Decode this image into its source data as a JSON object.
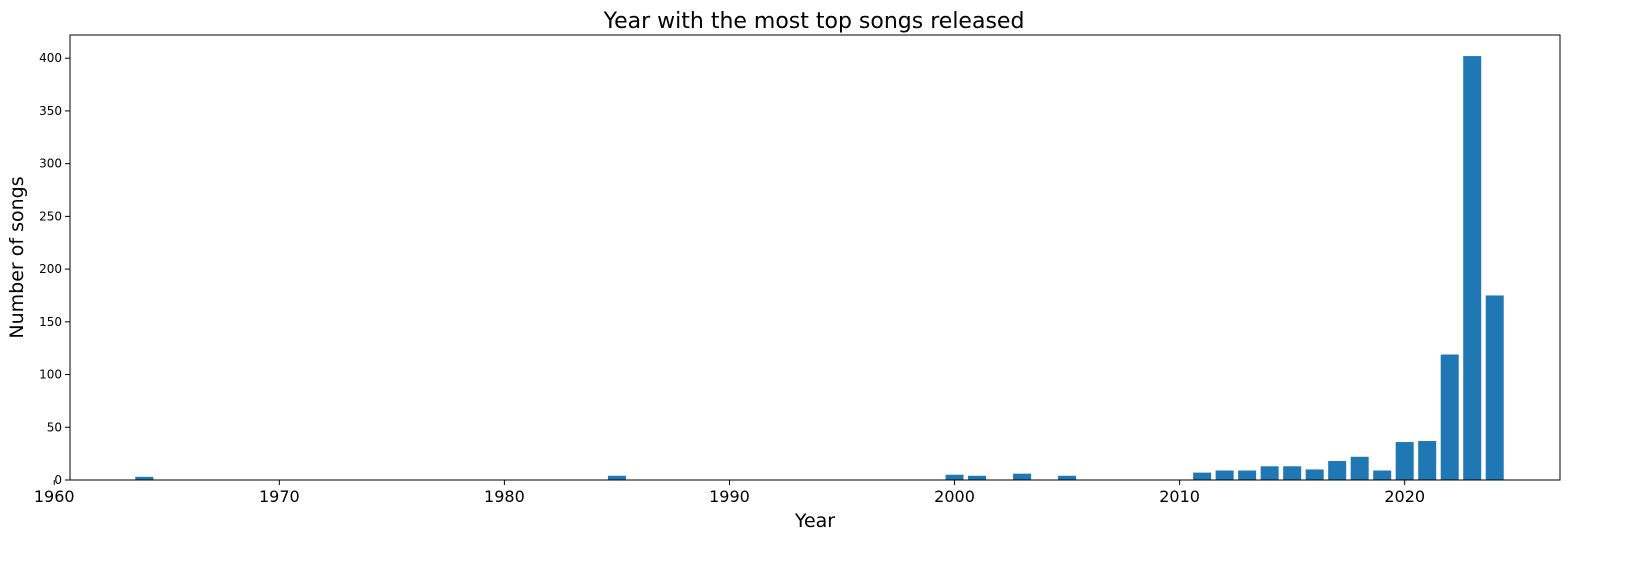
{
  "chart_data": {
    "type": "bar",
    "title": "Year with the most top songs released",
    "xlabel": "Year",
    "ylabel": "Number of songs",
    "xlim": [
      1960.7,
      2026.9
    ],
    "ylim": [
      0,
      422
    ],
    "xticks": [
      1960,
      1970,
      1980,
      1990,
      2000,
      2010,
      2020
    ],
    "yticks": [
      0,
      50,
      100,
      150,
      200,
      250,
      300,
      350,
      400
    ],
    "grid": false,
    "color": "#1f77b4",
    "bar_width": 0.8,
    "x": [
      1964,
      1985,
      2000,
      2001,
      2003,
      2005,
      2011,
      2012,
      2013,
      2014,
      2015,
      2016,
      2017,
      2018,
      2019,
      2020,
      2021,
      2022,
      2023,
      2024
    ],
    "values": [
      3,
      4,
      5,
      4,
      6,
      4,
      7,
      9,
      9,
      13,
      13,
      10,
      18,
      22,
      9,
      36,
      37,
      119,
      402,
      175
    ]
  }
}
